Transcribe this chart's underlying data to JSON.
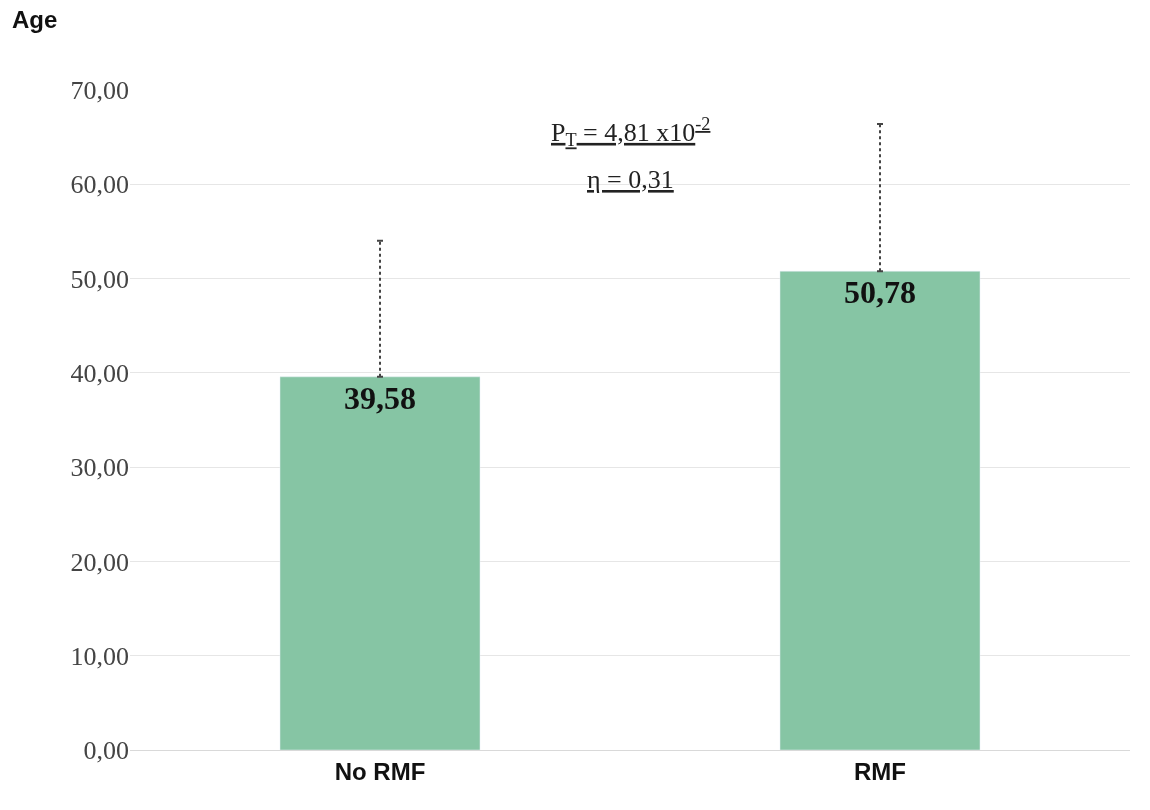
{
  "chart_data": {
    "type": "bar",
    "ylabel": "Age",
    "categories": [
      "No RMF",
      "RMF"
    ],
    "values": [
      39.58,
      50.78
    ],
    "errors": [
      [
        39.58,
        54.0
      ],
      [
        50.78,
        66.4
      ]
    ],
    "color": "#86c5a4",
    "data_labels": true,
    "value_labels": [
      "39,58",
      "50,78"
    ],
    "ylim": [
      0,
      70
    ],
    "yticks": [
      {
        "value": 0,
        "label": "0,00"
      },
      {
        "value": 10,
        "label": "10,00"
      },
      {
        "value": 20,
        "label": "20,00"
      },
      {
        "value": 30,
        "label": "30,00"
      },
      {
        "value": 40,
        "label": "40,00"
      },
      {
        "value": 50,
        "label": "50,00"
      },
      {
        "value": 60,
        "label": "60,00"
      },
      {
        "value": 70,
        "label": "70,00"
      }
    ],
    "grid": "y",
    "legend": false,
    "annotations": [
      "P$_{T}$ = 4,81 x10$^{-2}$",
      "η = 0,31"
    ]
  }
}
